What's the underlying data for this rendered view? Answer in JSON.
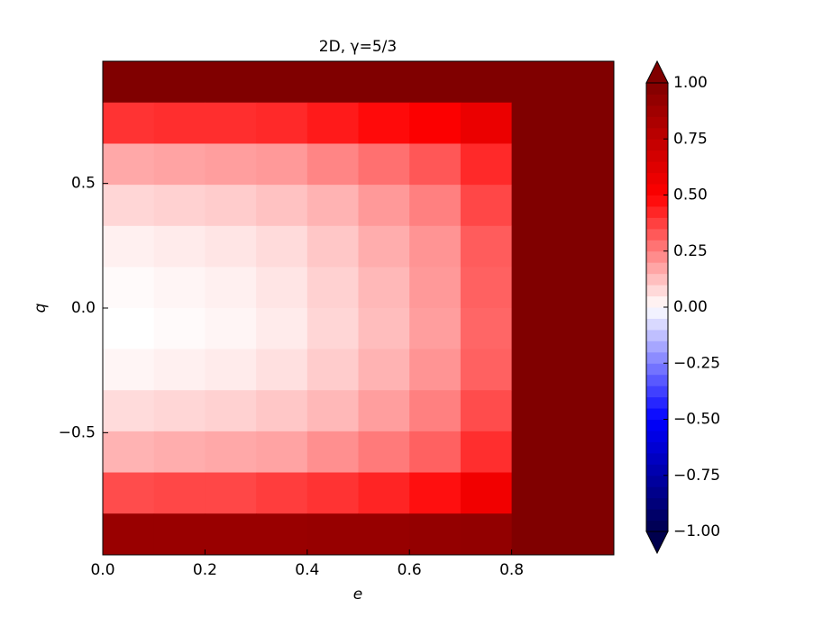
{
  "chart_data": {
    "type": "contourf",
    "title": "2D, γ=5/3",
    "xlabel": "e",
    "ylabel": "q",
    "xlim": [
      0,
      1.0
    ],
    "ylim": [
      -0.99,
      0.99
    ],
    "xticks": [
      {
        "value": 0,
        "label": "0.0"
      },
      {
        "value": 0.2,
        "label": "0.2"
      },
      {
        "value": 0.4,
        "label": "0.4"
      },
      {
        "value": 0.6,
        "label": "0.6"
      },
      {
        "value": 0.8,
        "label": "0.8"
      }
    ],
    "yticks": [
      {
        "value": -0.5,
        "label": "−0.5"
      },
      {
        "value": 0,
        "label": "0.0"
      },
      {
        "value": 0.5,
        "label": "0.5"
      }
    ],
    "x": [
      0.05,
      0.15,
      0.25,
      0.35,
      0.45,
      0.55,
      0.65,
      0.75,
      0.85,
      0.95
    ],
    "y": [
      0.907,
      0.742,
      0.577,
      0.412,
      0.247,
      0.082,
      -0.082,
      -0.247,
      -0.412,
      -0.577,
      -0.742,
      -0.907
    ],
    "z": [
      [
        1,
        1,
        1,
        1,
        1,
        1,
        1,
        1,
        1,
        1
      ],
      [
        0.4,
        0.41,
        0.41,
        0.42,
        0.45,
        0.48,
        0.51,
        0.58,
        1,
        1
      ],
      [
        0.17,
        0.18,
        0.19,
        0.2,
        0.24,
        0.28,
        0.33,
        0.42,
        1,
        1
      ],
      [
        0.08,
        0.09,
        0.1,
        0.12,
        0.15,
        0.2,
        0.25,
        0.36,
        1,
        1
      ],
      [
        0.03,
        0.04,
        0.05,
        0.07,
        0.11,
        0.16,
        0.21,
        0.32,
        1,
        1
      ],
      [
        0.01,
        0.02,
        0.03,
        0.05,
        0.09,
        0.14,
        0.2,
        0.31,
        1,
        1
      ],
      [
        0,
        0.01,
        0.02,
        0.04,
        0.08,
        0.13,
        0.19,
        0.3,
        1,
        1
      ],
      [
        0.02,
        0.03,
        0.04,
        0.06,
        0.1,
        0.15,
        0.21,
        0.31,
        1,
        1
      ],
      [
        0.07,
        0.08,
        0.09,
        0.11,
        0.14,
        0.19,
        0.25,
        0.35,
        1,
        1
      ],
      [
        0.15,
        0.16,
        0.17,
        0.18,
        0.22,
        0.26,
        0.31,
        0.41,
        1,
        1
      ],
      [
        0.35,
        0.36,
        0.36,
        0.38,
        0.4,
        0.43,
        0.47,
        0.55,
        1,
        1
      ],
      [
        0.9,
        0.9,
        0.9,
        0.9,
        0.91,
        0.91,
        0.92,
        0.93,
        1,
        1
      ]
    ],
    "zlim": [
      -1,
      1
    ],
    "colorbar_ticks": [
      {
        "value": 1,
        "label": "1.00"
      },
      {
        "value": 0.75,
        "label": "0.75"
      },
      {
        "value": 0.5,
        "label": "0.50"
      },
      {
        "value": 0.25,
        "label": "0.25"
      },
      {
        "value": 0,
        "label": "0.00"
      },
      {
        "value": -0.25,
        "label": "−0.25"
      },
      {
        "value": -0.5,
        "label": "−0.50"
      },
      {
        "value": -0.75,
        "label": "−0.75"
      },
      {
        "value": -1,
        "label": "−1.00"
      }
    ],
    "colormap": [
      "#00004d",
      "#0000ff",
      "#ffffff",
      "#ff0000",
      "#800000"
    ]
  }
}
